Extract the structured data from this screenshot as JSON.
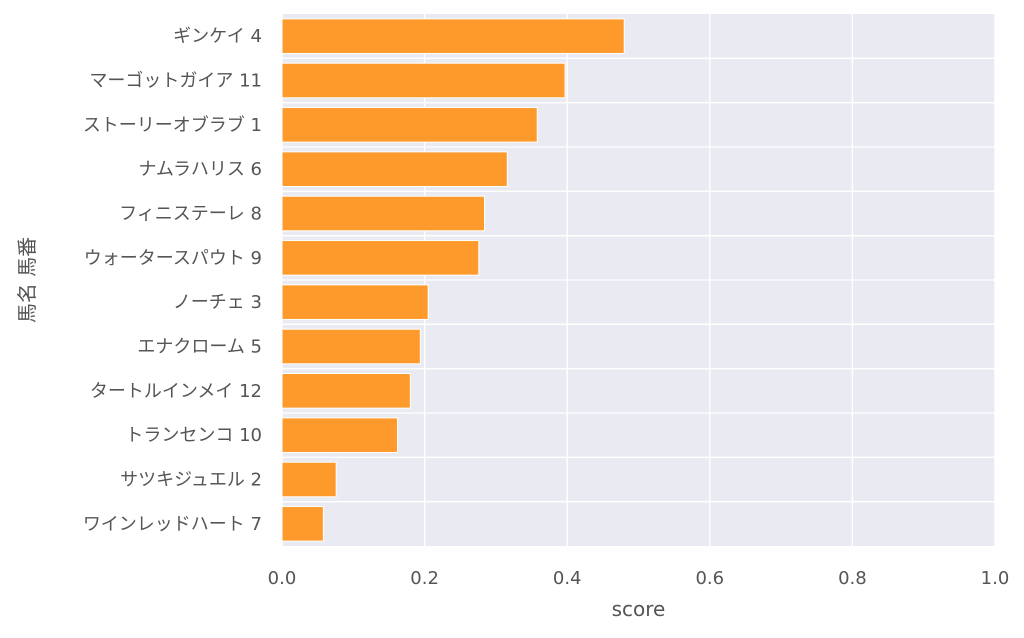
{
  "chart_data": {
    "type": "bar",
    "orientation": "horizontal",
    "categories": [
      "ギンケイ 4",
      "マーゴットガイア 11",
      "ストーリーオブラブ 1",
      "ナムラハリス 6",
      "フィニステーレ 8",
      "ウォータースパウト 9",
      "ノーチェ 3",
      "エナクローム 5",
      "タートルインメイ 12",
      "トランセンコ 10",
      "サツキジュエル 2",
      "ワインレッドハート 7"
    ],
    "values": [
      0.48,
      0.397,
      0.358,
      0.316,
      0.284,
      0.276,
      0.205,
      0.194,
      0.18,
      0.162,
      0.076,
      0.058
    ],
    "xlabel": "score",
    "ylabel": "馬名 馬番",
    "xlim": [
      0,
      1.0
    ],
    "xticks": [
      "0.0",
      "0.2",
      "0.4",
      "0.6",
      "0.8",
      "1.0"
    ],
    "grid": true,
    "colors": {
      "bar": "#fd9a2b",
      "plot_bg": "#eaeaf2",
      "grid": "#ffffff",
      "text": "#555555"
    }
  }
}
